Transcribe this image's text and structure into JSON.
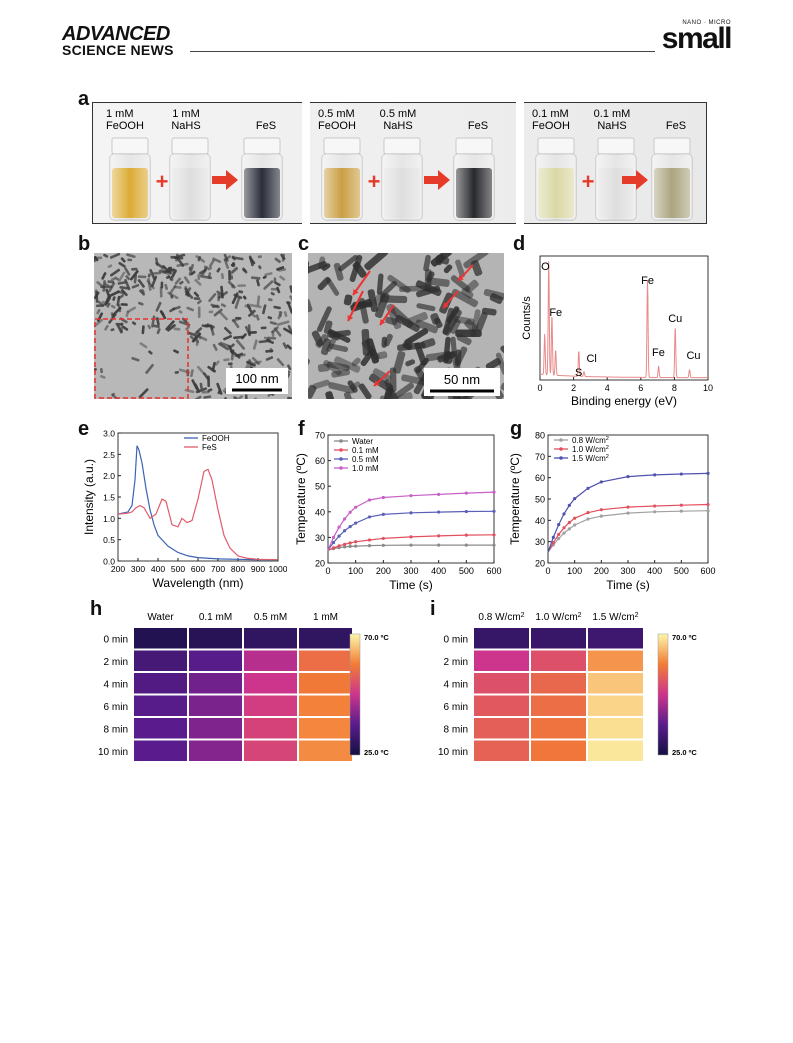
{
  "header": {
    "publisher_line1": "ADVANCED",
    "publisher_line2": "SCIENCE NEWS",
    "journal_tag": "NANO · MICRO",
    "journal_name": "small"
  },
  "panels": {
    "a": "a",
    "b": "b",
    "c": "c",
    "d": "d",
    "e": "e",
    "f": "f",
    "g": "g",
    "h": "h",
    "i": "i"
  },
  "panel_a": {
    "groups": [
      {
        "label1": "1 mM",
        "label2": "FeOOH",
        "label3": "1 mM",
        "label4": "NaHS",
        "product": "FeS"
      },
      {
        "label1": "0.5 mM",
        "label2": "FeOOH",
        "label3": "0.5 mM",
        "label4": "NaHS",
        "product": "FeS"
      },
      {
        "label1": "0.1 mM",
        "label2": "FeOOH",
        "label3": "0.1 mM",
        "label4": "NaHS",
        "product": "FeS"
      }
    ],
    "colors": {
      "vial1": [
        "#d9a72a",
        "#c79a3a",
        "#d8d6a0"
      ],
      "vial3": [
        "#1f2230",
        "#1d1e22",
        "#a7a07a"
      ]
    }
  },
  "panel_b": {
    "scalebar": "100 nm"
  },
  "panel_c": {
    "scalebar": "50 nm"
  },
  "chart_data": [
    {
      "id": "d",
      "type": "line",
      "xlabel": "Binding energy (eV)",
      "ylabel": "Counts/s",
      "xlim": [
        0,
        10
      ],
      "xticks": [
        0,
        2,
        4,
        6,
        8,
        10
      ],
      "peak_labels": [
        {
          "text": "O",
          "x": 0.5
        },
        {
          "text": "Fe",
          "x": 0.7
        },
        {
          "text": "S",
          "x": 2.3
        },
        {
          "text": "Cl",
          "x": 2.6
        },
        {
          "text": "Fe",
          "x": 6.4
        },
        {
          "text": "Fe",
          "x": 7.05
        },
        {
          "text": "Cu",
          "x": 8.05
        },
        {
          "text": "Cu",
          "x": 8.9
        }
      ],
      "peaks": [
        {
          "x": 0.28,
          "h": 0.35
        },
        {
          "x": 0.52,
          "h": 0.98
        },
        {
          "x": 0.71,
          "h": 0.52
        },
        {
          "x": 0.93,
          "h": 0.22
        },
        {
          "x": 2.31,
          "h": 0.22
        },
        {
          "x": 2.62,
          "h": 0.04
        },
        {
          "x": 6.4,
          "h": 0.84
        },
        {
          "x": 7.06,
          "h": 0.1
        },
        {
          "x": 8.05,
          "h": 0.44
        },
        {
          "x": 8.9,
          "h": 0.07
        }
      ],
      "color": "#e88a8a"
    },
    {
      "id": "e",
      "type": "line",
      "xlabel": "Wavelength (nm)",
      "ylabel": "Intensity (a.u.)",
      "xlim": [
        200,
        1000
      ],
      "ylim": [
        0,
        3.0
      ],
      "xticks": [
        200,
        300,
        400,
        500,
        600,
        700,
        800,
        900,
        1000
      ],
      "yticks": [
        0.0,
        0.5,
        1.0,
        1.5,
        2.0,
        2.5,
        3.0
      ],
      "series": [
        {
          "name": "FeOOH",
          "color": "#3b64b4",
          "x": [
            200,
            250,
            270,
            285,
            295,
            305,
            320,
            340,
            360,
            380,
            400,
            450,
            500,
            550,
            600,
            700,
            800,
            900,
            1000
          ],
          "y": [
            1.1,
            1.15,
            1.3,
            1.9,
            2.7,
            2.6,
            2.3,
            1.7,
            1.2,
            0.85,
            0.6,
            0.35,
            0.2,
            0.12,
            0.08,
            0.05,
            0.04,
            0.03,
            0.03
          ]
        },
        {
          "name": "FeS",
          "color": "#e05c6a",
          "x": [
            200,
            250,
            270,
            290,
            310,
            330,
            360,
            390,
            420,
            440,
            470,
            500,
            520,
            545,
            570,
            600,
            630,
            650,
            670,
            700,
            730,
            760,
            800,
            850,
            900,
            1000
          ],
          "y": [
            1.1,
            1.12,
            1.15,
            1.25,
            1.3,
            1.25,
            1.0,
            1.1,
            1.45,
            1.4,
            0.85,
            0.8,
            1.0,
            0.9,
            0.95,
            1.45,
            2.1,
            2.15,
            1.9,
            1.2,
            0.6,
            0.3,
            0.12,
            0.06,
            0.04,
            0.03
          ]
        }
      ]
    },
    {
      "id": "f",
      "type": "line",
      "xlabel": "Time (s)",
      "ylabel": "Temperature (ºC)",
      "xlim": [
        0,
        600
      ],
      "ylim": [
        20,
        70
      ],
      "xticks": [
        0,
        100,
        200,
        300,
        400,
        500,
        600
      ],
      "yticks": [
        20,
        30,
        40,
        50,
        60,
        70
      ],
      "series": [
        {
          "name": "Water",
          "color": "#8a8a8a",
          "x": [
            0,
            20,
            40,
            60,
            80,
            100,
            150,
            200,
            300,
            400,
            500,
            600
          ],
          "y": [
            25.0,
            25.6,
            26.0,
            26.3,
            26.5,
            26.6,
            26.8,
            26.9,
            27.0,
            27.0,
            27.0,
            27.0
          ]
        },
        {
          "name": "0.1 mM",
          "color": "#e2505f",
          "x": [
            0,
            20,
            40,
            60,
            80,
            100,
            150,
            200,
            300,
            400,
            500,
            600
          ],
          "y": [
            25.0,
            25.9,
            26.7,
            27.3,
            27.8,
            28.3,
            29.0,
            29.6,
            30.2,
            30.6,
            30.9,
            31.0
          ]
        },
        {
          "name": "0.5 mM",
          "color": "#5a5fb8",
          "x": [
            0,
            20,
            40,
            60,
            80,
            100,
            150,
            200,
            300,
            400,
            500,
            600
          ],
          "y": [
            25.0,
            28.0,
            30.5,
            32.6,
            34.2,
            35.6,
            38.0,
            39.0,
            39.6,
            39.9,
            40.1,
            40.2
          ]
        },
        {
          "name": "1.0  mM",
          "color": "#c860c8",
          "x": [
            0,
            20,
            40,
            60,
            80,
            100,
            150,
            200,
            300,
            400,
            500,
            600
          ],
          "y": [
            25.0,
            30.0,
            34.0,
            37.2,
            39.8,
            41.8,
            44.6,
            45.6,
            46.3,
            46.8,
            47.3,
            47.7
          ]
        }
      ]
    },
    {
      "id": "g",
      "type": "line",
      "xlabel": "Time (s)",
      "ylabel": "Temperature (ºC)",
      "xlim": [
        0,
        600
      ],
      "ylim": [
        20,
        80
      ],
      "xticks": [
        0,
        100,
        200,
        300,
        400,
        500,
        600
      ],
      "yticks": [
        20,
        30,
        40,
        50,
        60,
        70,
        80
      ],
      "series": [
        {
          "name": "0.8 W/cm²",
          "color": "#a0a0a0",
          "x": [
            0,
            20,
            40,
            60,
            80,
            100,
            150,
            200,
            300,
            400,
            500,
            600
          ],
          "y": [
            25.0,
            28.5,
            31.5,
            34.0,
            36.0,
            37.8,
            40.6,
            42.0,
            43.4,
            44.0,
            44.3,
            44.5
          ]
        },
        {
          "name": "1.0 W/cm²",
          "color": "#e2505f",
          "x": [
            0,
            20,
            40,
            60,
            80,
            100,
            150,
            200,
            300,
            400,
            500,
            600
          ],
          "y": [
            25.0,
            29.5,
            33.4,
            36.5,
            39.0,
            41.0,
            43.6,
            45.0,
            46.2,
            46.7,
            47.1,
            47.4
          ]
        },
        {
          "name": "1.5 W/cm²",
          "color": "#4f52b0",
          "x": [
            0,
            20,
            40,
            60,
            80,
            100,
            150,
            200,
            300,
            400,
            500,
            600
          ],
          "y": [
            25.0,
            32.0,
            38.0,
            43.0,
            47.0,
            50.2,
            55.0,
            58.0,
            60.5,
            61.3,
            61.7,
            62.0
          ]
        }
      ]
    }
  ],
  "panel_h": {
    "columns": [
      "Water",
      "0.1 mM",
      "0.5 mM",
      "1 mM"
    ],
    "rows": [
      "0 min",
      "2 min",
      "4 min",
      "6 min",
      "8 min",
      "10 min"
    ],
    "max_label": "70.0 ºC",
    "min_label": "25.0 ºC",
    "levels": [
      [
        0.05,
        0.07,
        0.1,
        0.1
      ],
      [
        0.18,
        0.24,
        0.45,
        0.7
      ],
      [
        0.22,
        0.3,
        0.5,
        0.74
      ],
      [
        0.24,
        0.32,
        0.53,
        0.76
      ],
      [
        0.25,
        0.33,
        0.55,
        0.77
      ],
      [
        0.25,
        0.34,
        0.56,
        0.78
      ]
    ]
  },
  "panel_i": {
    "columns": [
      "0.8 W/cm²",
      "1.0 W/cm²",
      "1.5 W/cm²"
    ],
    "rows": [
      "0 min",
      "2 min",
      "4 min",
      "6 min",
      "8 min",
      "10 min"
    ],
    "max_label": "70.0 ºC",
    "min_label": "25.0 ºC",
    "levels": [
      [
        0.12,
        0.13,
        0.15
      ],
      [
        0.5,
        0.6,
        0.8
      ],
      [
        0.6,
        0.68,
        0.9
      ],
      [
        0.63,
        0.7,
        0.93
      ],
      [
        0.65,
        0.72,
        0.95
      ],
      [
        0.66,
        0.73,
        0.97
      ]
    ]
  }
}
